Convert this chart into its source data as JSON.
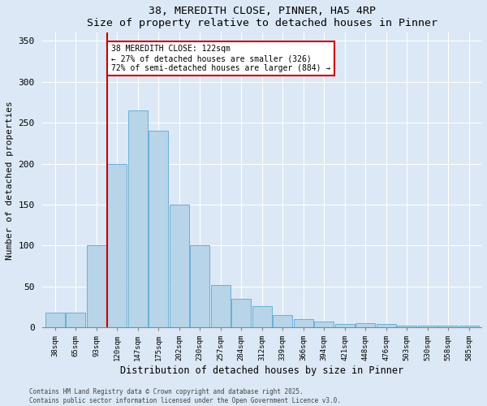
{
  "title1": "38, MEREDITH CLOSE, PINNER, HA5 4RP",
  "title2": "Size of property relative to detached houses in Pinner",
  "xlabel": "Distribution of detached houses by size in Pinner",
  "ylabel": "Number of detached properties",
  "categories": [
    "38sqm",
    "65sqm",
    "93sqm",
    "120sqm",
    "147sqm",
    "175sqm",
    "202sqm",
    "230sqm",
    "257sqm",
    "284sqm",
    "312sqm",
    "339sqm",
    "366sqm",
    "394sqm",
    "421sqm",
    "448sqm",
    "476sqm",
    "503sqm",
    "530sqm",
    "558sqm",
    "585sqm"
  ],
  "values": [
    18,
    18,
    100,
    200,
    265,
    240,
    150,
    100,
    52,
    35,
    26,
    15,
    10,
    7,
    4,
    5,
    4,
    2,
    2,
    2,
    2
  ],
  "bar_color": "#b8d4e8",
  "bar_edge_color": "#6aafd6",
  "property_line_index": 3,
  "property_line_color": "#cc0000",
  "annotation_text": "38 MEREDITH CLOSE: 122sqm\n← 27% of detached houses are smaller (326)\n72% of semi-detached houses are larger (884) →",
  "annotation_box_color": "#ffffff",
  "annotation_box_edge_color": "#cc0000",
  "ylim": [
    0,
    360
  ],
  "yticks": [
    0,
    50,
    100,
    150,
    200,
    250,
    300,
    350
  ],
  "footer1": "Contains HM Land Registry data © Crown copyright and database right 2025.",
  "footer2": "Contains public sector information licensed under the Open Government Licence v3.0.",
  "fig_bg_color": "#dce8f5",
  "plot_bg_color": "#dce8f5"
}
